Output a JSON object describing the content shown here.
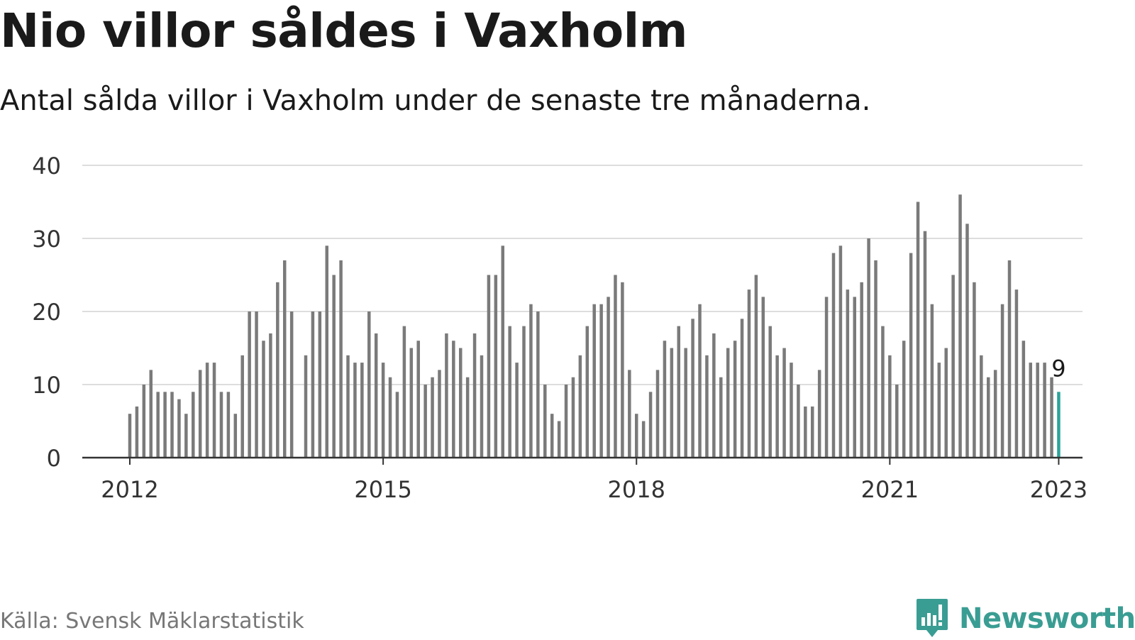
{
  "header": {
    "title": "Nio villor såldes i Vaxholm",
    "subtitle": "Antal sålda villor i Vaxholm under de senaste tre månaderna."
  },
  "footer": {
    "source": "Källa: Svensk Mäklarstatistik",
    "brand": "Newsworthy",
    "brand_icon": "bar-chart-logo-icon"
  },
  "colors": {
    "bar": "#7a7a7a",
    "highlight": "#2ba39a",
    "grid": "#dddddd",
    "axis": "#333333",
    "brand": "#3a9d93"
  },
  "chart_data": {
    "type": "bar",
    "title": "Nio villor såldes i Vaxholm",
    "subtitle": "Antal sålda villor i Vaxholm under de senaste tre månaderna.",
    "xlabel": "",
    "ylabel": "",
    "ylim": [
      0,
      40
    ],
    "yticks": [
      0,
      10,
      20,
      30,
      40
    ],
    "xticks": [
      "2012",
      "2015",
      "2018",
      "2021",
      "2023"
    ],
    "grid": true,
    "start": "2012-01",
    "frequency": "monthly",
    "values": [
      6,
      7,
      10,
      12,
      9,
      9,
      9,
      8,
      6,
      9,
      12,
      13,
      13,
      9,
      9,
      6,
      14,
      20,
      20,
      16,
      17,
      24,
      27,
      20,
      null,
      14,
      20,
      20,
      29,
      25,
      27,
      14,
      13,
      13,
      20,
      17,
      13,
      11,
      9,
      18,
      15,
      16,
      10,
      11,
      12,
      17,
      16,
      15,
      11,
      17,
      14,
      25,
      25,
      29,
      18,
      13,
      18,
      21,
      20,
      10,
      6,
      5,
      10,
      11,
      14,
      18,
      21,
      21,
      22,
      25,
      24,
      12,
      6,
      5,
      9,
      12,
      16,
      15,
      18,
      15,
      19,
      21,
      14,
      17,
      11,
      15,
      16,
      19,
      23,
      25,
      22,
      18,
      14,
      15,
      13,
      10,
      7,
      7,
      12,
      22,
      28,
      29,
      23,
      22,
      24,
      30,
      27,
      18,
      14,
      10,
      16,
      28,
      35,
      31,
      21,
      13,
      15,
      25,
      36,
      32,
      24,
      14,
      11,
      12,
      21,
      27,
      23,
      16,
      13,
      13,
      13,
      11,
      9
    ],
    "highlight": {
      "category": "2023-01",
      "value": 9,
      "label": "9"
    }
  }
}
